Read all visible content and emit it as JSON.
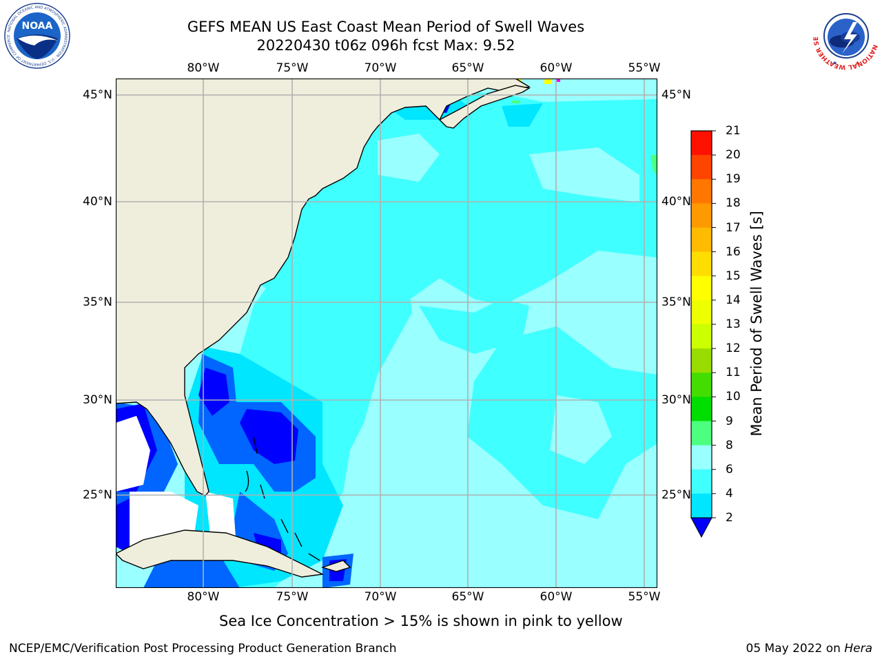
{
  "header": {
    "title_line1": "GEFS MEAN US East Coast Mean Period of Swell Waves",
    "title_line2": "20220430 t06z 096h fcst   Max: 9.52"
  },
  "logos": {
    "noaa_text": "NOAA",
    "noaa_ring_text": "NATIONAL OCEANIC AND ATMOSPHERIC ADMINISTRATION · U.S. DEPARTMENT OF COMMERCE",
    "nws_ring_text": "NATIONAL WEATHER SERVICE"
  },
  "map": {
    "lon_labels": [
      "80°W",
      "75°W",
      "70°W",
      "65°W",
      "60°W",
      "55°W"
    ],
    "lat_labels": [
      "45°N",
      "40°N",
      "35°N",
      "30°N",
      "25°N"
    ],
    "lon_range": [
      -85,
      -54.3
    ],
    "lat_range": [
      20.4,
      45.8
    ],
    "ocean_color": "#99ffff",
    "land_color": "#efeedd",
    "grid_color": "#b0b0b0"
  },
  "colorbar": {
    "label": "Mean Period of Swell Waves [s]",
    "ticks": [
      "2",
      "4",
      "6",
      "8",
      "9",
      "10",
      "11",
      "12",
      "13",
      "14",
      "15",
      "16",
      "17",
      "18",
      "19",
      "20",
      "21"
    ],
    "colors": [
      "#0066ff",
      "#00e6ff",
      "#40ffff",
      "#99ffff",
      "#4dff80",
      "#00dd00",
      "#44dd00",
      "#99dd00",
      "#ccff00",
      "#eeff00",
      "#ffff00",
      "#ffdd00",
      "#ffbb00",
      "#ff9900",
      "#ff7700",
      "#ff4400",
      "#ff1100",
      "#ff0000"
    ],
    "under_color": "#0000ff"
  },
  "footer": {
    "note": "Sea Ice Concentration > 15% is shown in pink to yellow",
    "left": "NCEP/EMC/Verification Post Processing Product Generation Branch",
    "right_date": "05 May 2022 on",
    "right_host": "Hera"
  }
}
